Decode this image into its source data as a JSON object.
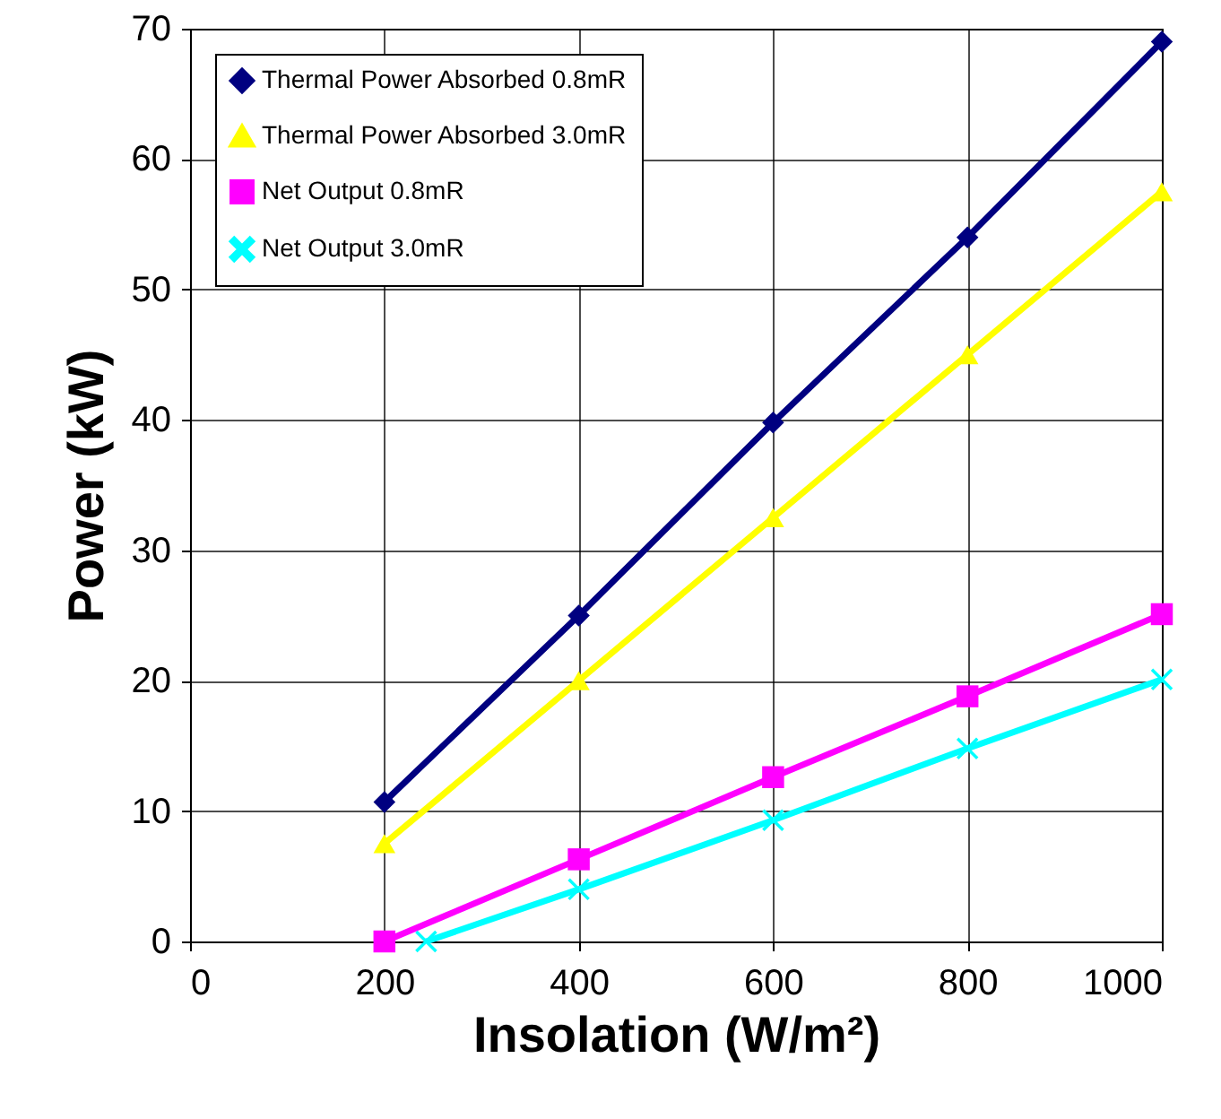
{
  "chart_data": {
    "type": "line",
    "xlabel": "Insolation (W/m²)",
    "ylabel": "Power (kW)",
    "x": [
      200,
      400,
      600,
      800,
      1000
    ],
    "series": [
      {
        "name": "Thermal Power Absorbed 0.8mR",
        "color": "#000080",
        "marker": "diamond",
        "values": [
          10.7,
          25,
          39.8,
          54,
          69
        ]
      },
      {
        "name": "Thermal Power Absorbed 3.0mR",
        "color": "#ffff00",
        "marker": "triangle",
        "values": [
          7.5,
          20,
          32.5,
          45,
          57.5
        ]
      },
      {
        "name": "Net Output 0.8mR",
        "color": "#ff00ff",
        "marker": "square",
        "values": [
          0,
          6.3,
          12.6,
          18.8,
          25.1
        ]
      },
      {
        "name": "Net Output 3.0mR",
        "color": "#00ffff",
        "marker": "cross",
        "x": [
          243,
          400,
          600,
          800,
          1000
        ],
        "values": [
          0,
          4,
          9.3,
          14.8,
          20.1
        ]
      }
    ],
    "xlim": [
      0,
      1000
    ],
    "xticks": [
      0,
      200,
      400,
      600,
      800,
      1000
    ],
    "ylim": [
      0,
      70
    ],
    "yticks": [
      0,
      10,
      20,
      30,
      40,
      50,
      60,
      70
    ],
    "grid": true,
    "legend": "top left",
    "line_style": "solid"
  }
}
